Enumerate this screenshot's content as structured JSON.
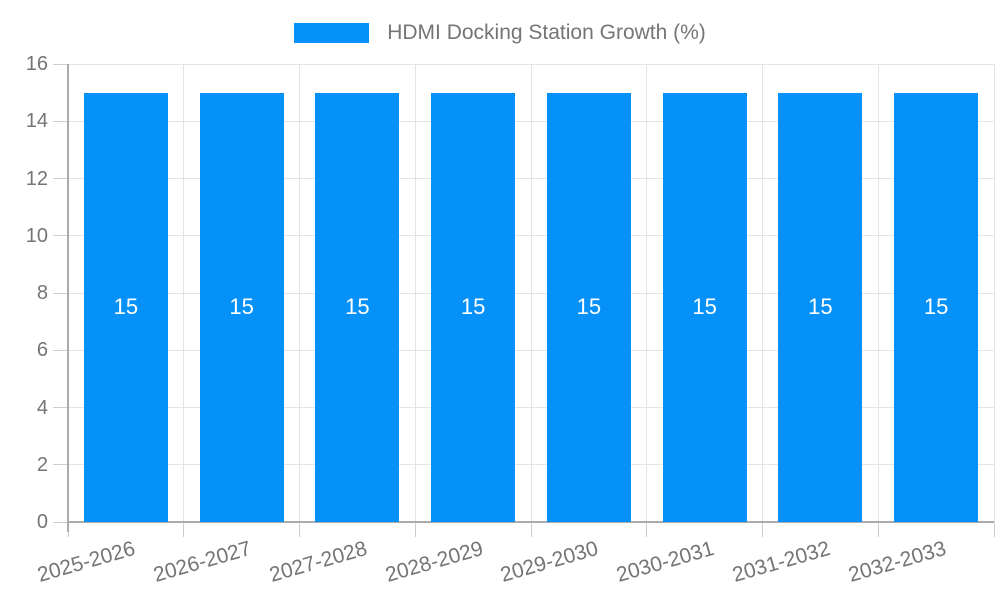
{
  "chart_data": {
    "type": "bar",
    "legend": "HDMI Docking Station Growth (%)",
    "legend_position": "top-center",
    "categories": [
      "2025-2026",
      "2026-2027",
      "2027-2028",
      "2028-2029",
      "2029-2030",
      "2030-2031",
      "2031-2032",
      "2032-2033"
    ],
    "series": [
      {
        "name": "HDMI Docking Station Growth (%)",
        "values": [
          15,
          15,
          15,
          15,
          15,
          15,
          15,
          15
        ]
      }
    ],
    "bar_value_labels": [
      "15",
      "15",
      "15",
      "15",
      "15",
      "15",
      "15",
      "15"
    ],
    "xlabel": "",
    "ylabel": "",
    "ylim": [
      0,
      16
    ],
    "yticks": [
      0,
      2,
      4,
      6,
      8,
      10,
      12,
      14,
      16
    ],
    "grid": true,
    "colors": {
      "bar": "#0591F8",
      "grid": "#E5E5E5",
      "axis": "#ABABAB",
      "tick": "#CDCDCD",
      "tick_text": "#757575",
      "bar_label_text": "#FFFFFF",
      "background": "#FFFFFF"
    }
  }
}
